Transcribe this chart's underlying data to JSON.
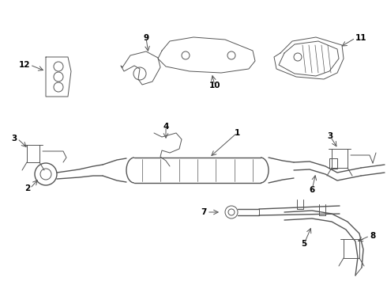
{
  "bg_color": "#ffffff",
  "line_color": "#555555",
  "lw_main": 1.0,
  "lw_thin": 0.7,
  "figsize": [
    4.9,
    3.6
  ],
  "dpi": 100
}
